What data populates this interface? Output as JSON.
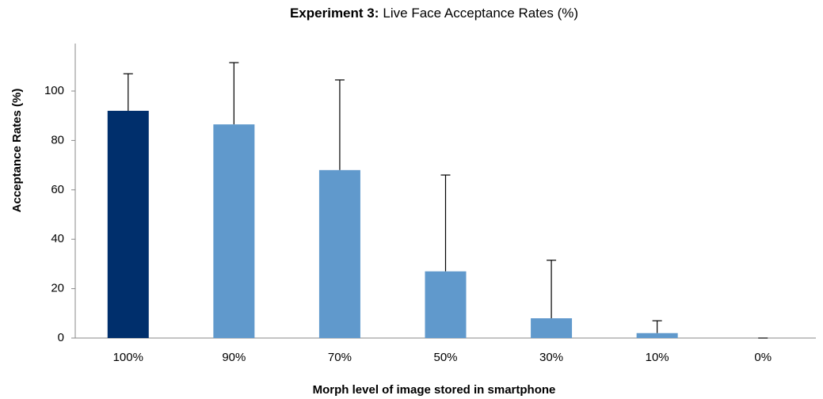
{
  "chart_data": {
    "type": "bar",
    "title_bold": "Experiment 3:",
    "title": "Live Face Acceptance Rates (%)",
    "x_label": "Morph level of image stored in smartphone",
    "y_label": "Acceptance Rates (%)",
    "categories": [
      "100%",
      "90%",
      "70%",
      "50%",
      "30%",
      "10%",
      "0%"
    ],
    "values": [
      92,
      86.5,
      68,
      27,
      8,
      2,
      0
    ],
    "errors": [
      15,
      25,
      36.5,
      39,
      23.5,
      5,
      0
    ],
    "colors": [
      "#002f6c",
      "#6099cc",
      "#6099cc",
      "#6099cc",
      "#6099cc",
      "#6099cc",
      "#6099cc"
    ],
    "ylim": [
      0,
      120
    ],
    "yticks": [
      0,
      20,
      40,
      60,
      80,
      100
    ],
    "grid": false
  }
}
